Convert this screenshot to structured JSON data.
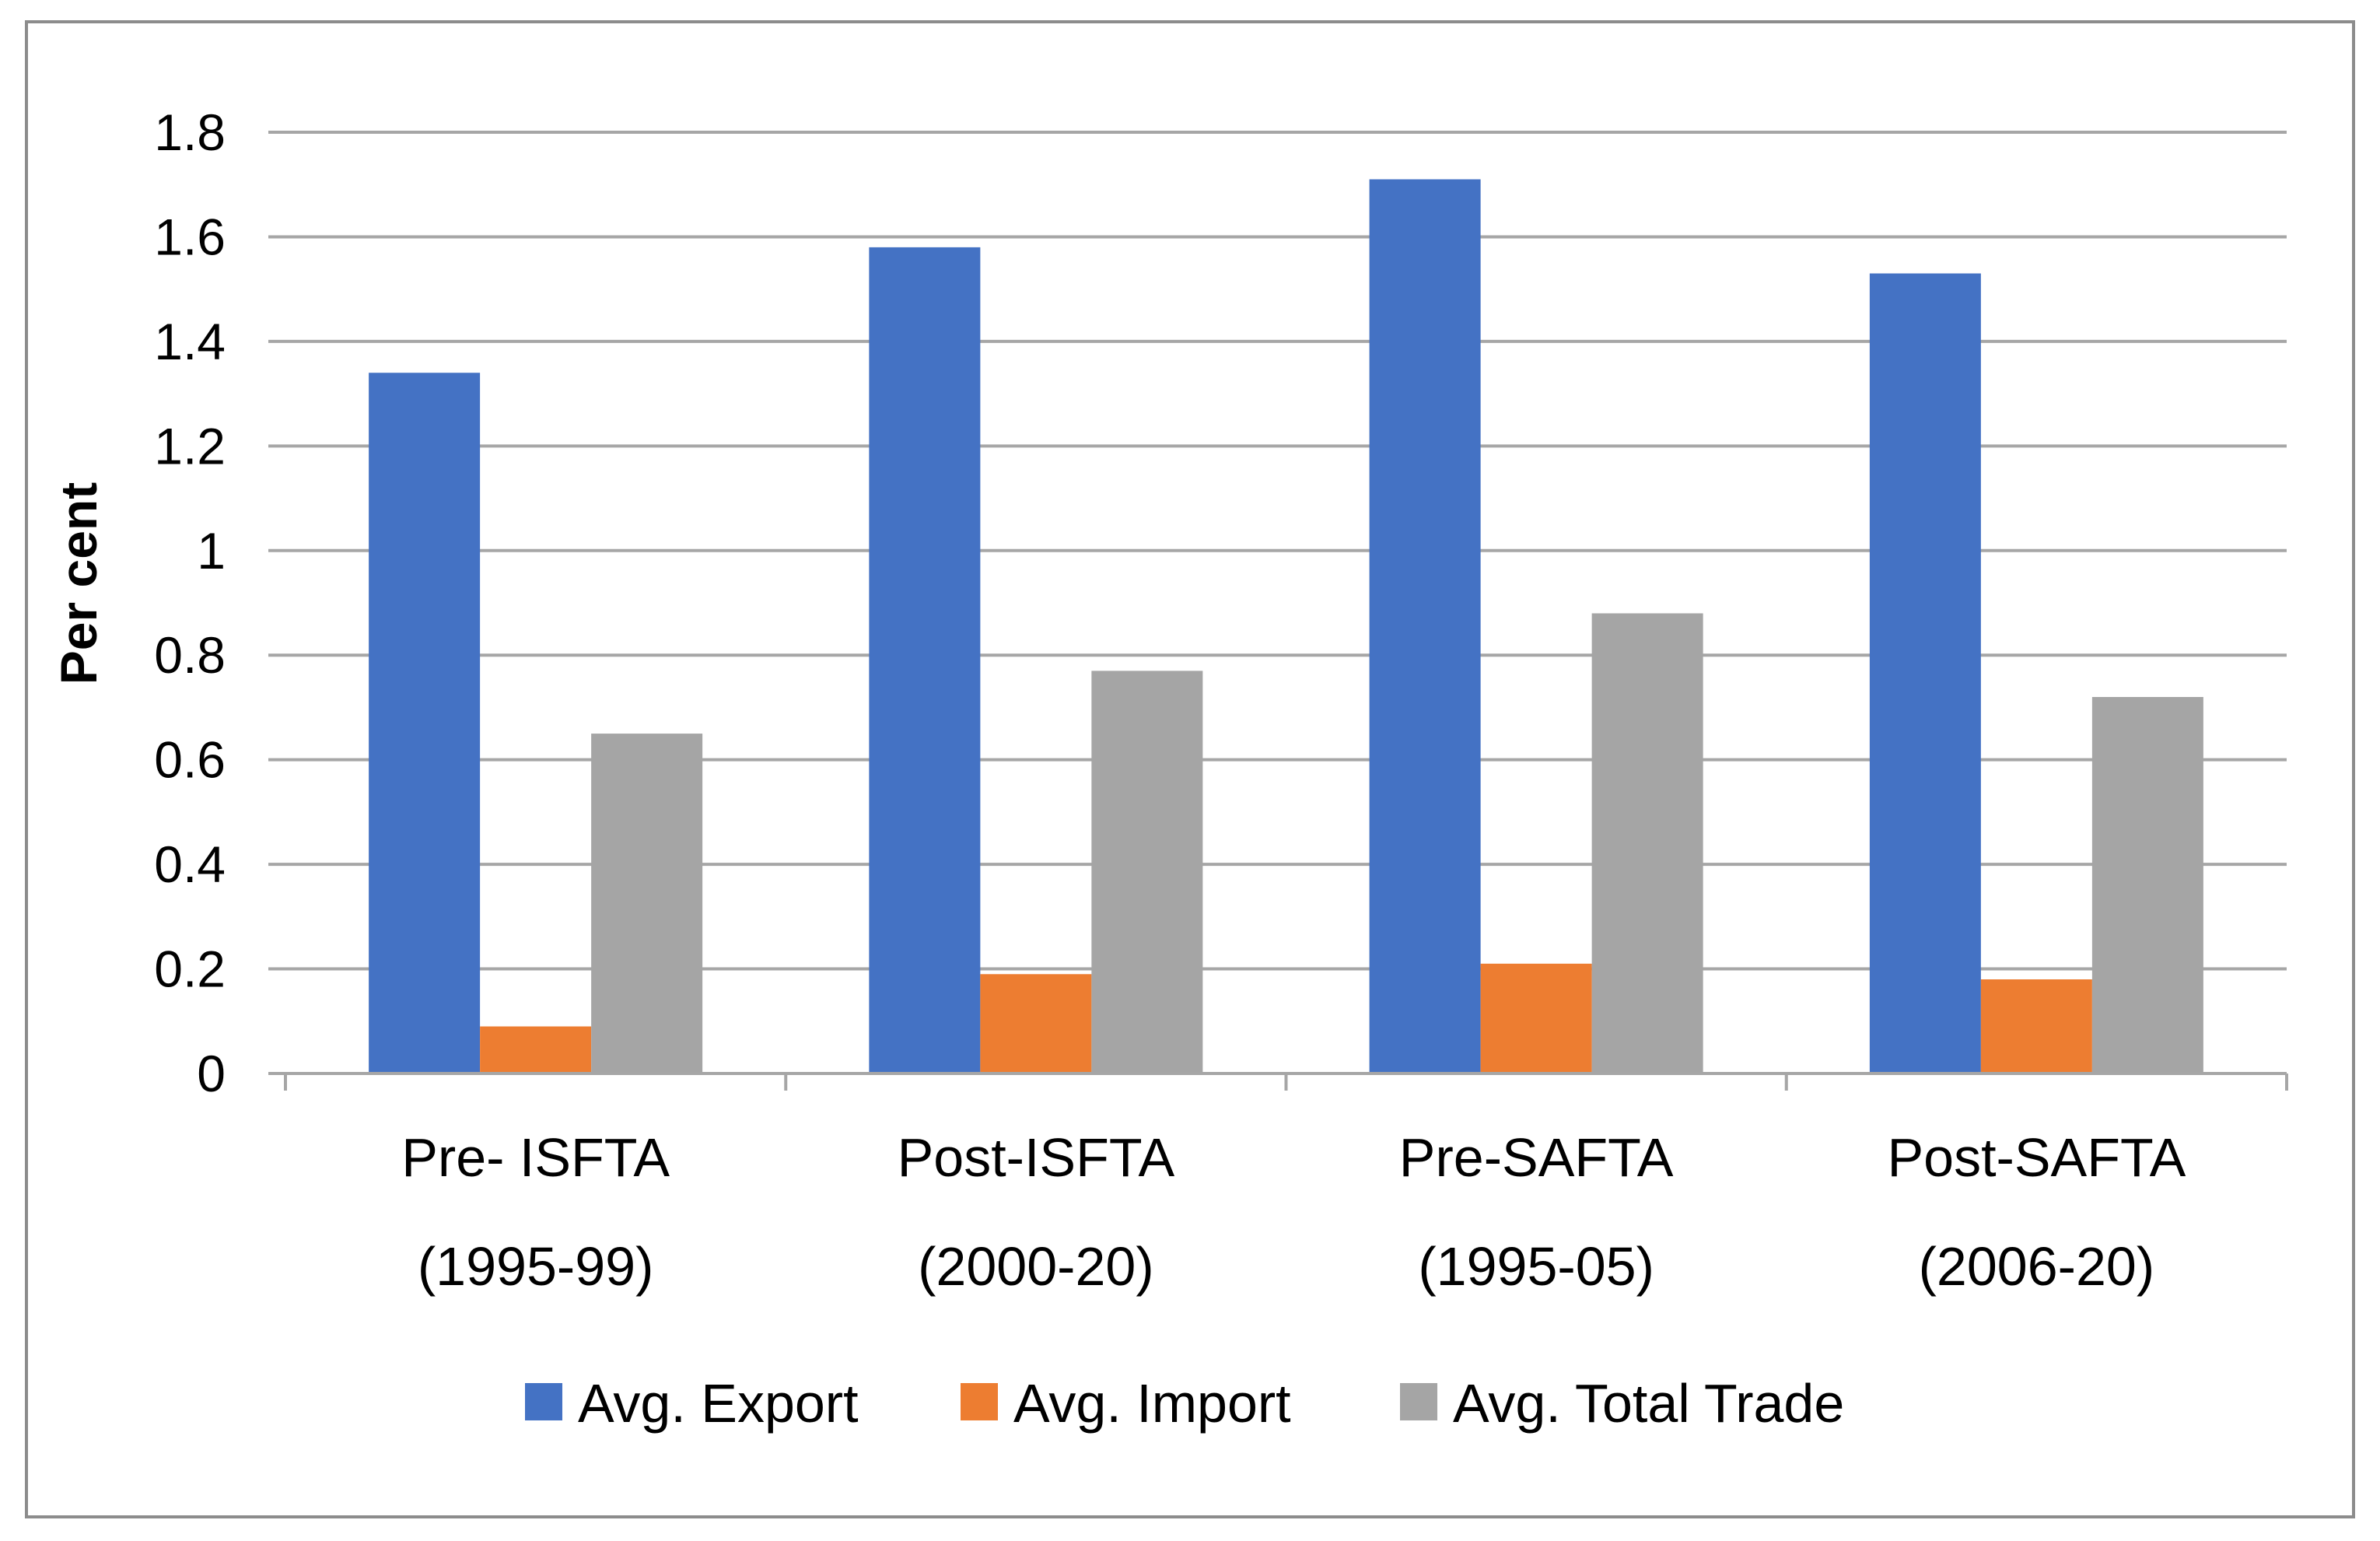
{
  "chart_data": {
    "type": "bar",
    "title": "",
    "xlabel": "",
    "ylabel": "Per cent",
    "ylim": [
      0,
      1.8
    ],
    "yticks": [
      "0",
      "0.2",
      "0.4",
      "0.6",
      "0.8",
      "1",
      "1.2",
      "1.4",
      "1.6",
      "1.8"
    ],
    "grid": true,
    "legend_position": "bottom",
    "categories": [
      [
        "Pre- ISFTA",
        "(1995-99)"
      ],
      [
        "Post-ISFTA",
        "(2000-20)"
      ],
      [
        "Pre-SAFTA",
        "(1995-05)"
      ],
      [
        "Post-SAFTA",
        "(2006-20)"
      ]
    ],
    "series": [
      {
        "name": "Avg. Export",
        "color": "#4472C4",
        "values": [
          1.34,
          1.58,
          1.71,
          1.53
        ]
      },
      {
        "name": "Avg. Import",
        "color": "#ED7D31",
        "values": [
          0.09,
          0.19,
          0.21,
          0.18
        ]
      },
      {
        "name": "Avg. Total Trade",
        "color": "#A5A5A5",
        "values": [
          0.65,
          0.77,
          0.88,
          0.72
        ]
      }
    ]
  }
}
